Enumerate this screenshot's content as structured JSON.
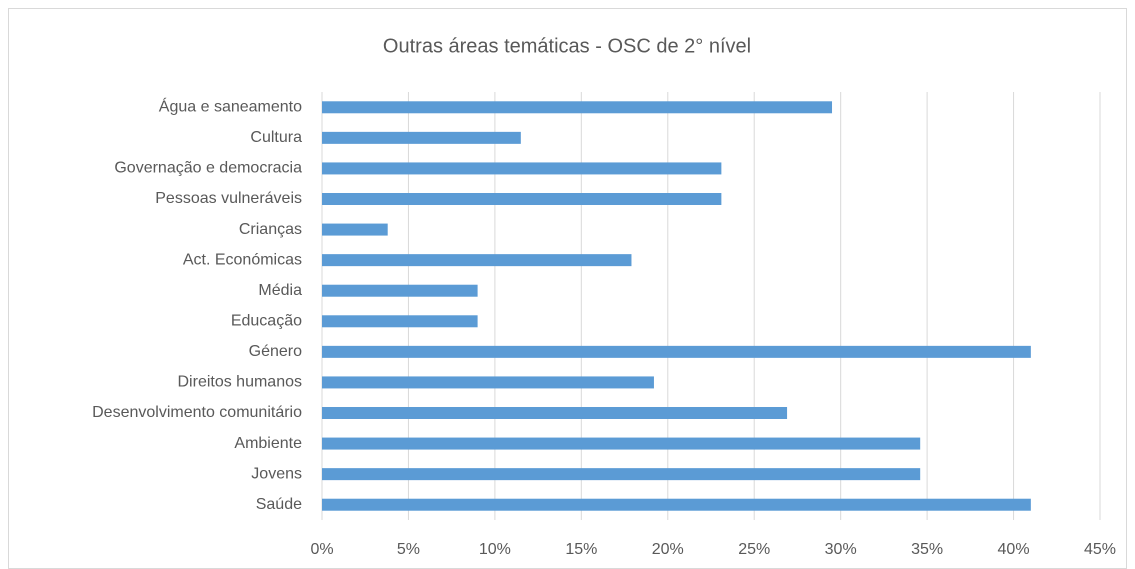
{
  "chart_data": {
    "type": "bar",
    "orientation": "horizontal",
    "title": "Outras áreas temáticas - OSC de 2° nível",
    "categories": [
      "Água e saneamento",
      "Cultura",
      "Governação e democracia",
      "Pessoas vulneráveis",
      "Crianças",
      "Act. Económicas",
      "Média",
      "Educação",
      "Género",
      "Direitos humanos",
      "Desenvolvimento comunitário",
      "Ambiente",
      "Jovens",
      "Saúde"
    ],
    "values": [
      29.5,
      11.5,
      23.1,
      23.1,
      3.8,
      17.9,
      9,
      9,
      41,
      19.2,
      26.9,
      34.6,
      34.6,
      41
    ],
    "color": "#5b9bd5",
    "xlim": [
      0,
      45
    ],
    "xticks": [
      {
        "value": 0,
        "label": "0%"
      },
      {
        "value": 5,
        "label": "5%"
      },
      {
        "value": 10,
        "label": "10%"
      },
      {
        "value": 15,
        "label": "15%"
      },
      {
        "value": 20,
        "label": "20%"
      },
      {
        "value": 25,
        "label": "25%"
      },
      {
        "value": 30,
        "label": "30%"
      },
      {
        "value": 35,
        "label": "35%"
      },
      {
        "value": 40,
        "label": "40%"
      },
      {
        "value": 45,
        "label": "45%"
      }
    ],
    "grid": true
  }
}
